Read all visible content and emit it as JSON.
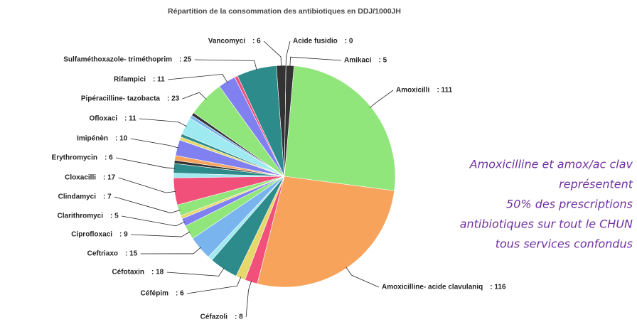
{
  "chart_data": {
    "type": "pie",
    "title": "Répartition de la consommation des antibiotiques en DDJ/1000JH",
    "categories": [
      "Amoxicilli",
      "Amoxicilline- acide clavulaniq",
      "Céfazoli",
      "Céfépim",
      "Céfotaxin",
      null,
      "Ceftriaxo",
      "Ciprofloxaci",
      "Clarithromyci",
      null,
      "Clindamyci",
      "Cloxacilli",
      null,
      "Erythromycin",
      null,
      null,
      "Imipénèn",
      null,
      null,
      "Ofloxaci",
      null,
      null,
      "Pipéracilline- tazobacta",
      "Rifampici",
      null,
      "Sulfaméthoxazole- triméthoprim",
      "Vancomyci",
      "Acide fusidio",
      "Amikaci"
    ],
    "values": [
      111,
      116,
      8,
      6,
      18,
      3,
      15,
      9,
      5,
      2,
      7,
      17,
      3,
      6,
      2,
      3,
      10,
      2,
      2,
      11,
      2,
      2,
      23,
      11,
      2,
      25,
      6,
      0,
      5
    ],
    "value_labels": [
      ": 111",
      ": 116",
      ": 8",
      ": 6",
      ": 18",
      null,
      ": 15",
      ": 9",
      ": 5",
      null,
      ": 7",
      ": 17",
      null,
      ": 6",
      null,
      null,
      ": 10",
      null,
      null,
      ": 11",
      null,
      null,
      ": 23",
      ": 11",
      null,
      ": 25",
      ": 6",
      ": 0",
      ": 5"
    ],
    "colors": [
      "#90e67a",
      "#f7a35c",
      "#f0507a",
      "#e6d86a",
      "#2e8b8b",
      "#9eeaf0",
      "#7ab4ef",
      "#90e67a",
      "#8080f0",
      "#e6d86a",
      "#90e67a",
      "#f0507a",
      "#9eeaf0",
      "#2e8b8b",
      "#333333",
      "#f7a35c",
      "#8080f0",
      "#e6d86a",
      "#2e8b8b",
      "#9eeaf0",
      "#7ab4ef",
      "#333333",
      "#90e67a",
      "#8080f0",
      "#f0507a",
      "#2e8b8b",
      "#333333",
      "#7ab4ef",
      "#333333"
    ],
    "annotation": [
      "Amoxicilline et amox/ac clav",
      "représentent",
      "50% des prescriptions",
      "antibiotiques sur tout le CHUN",
      "tous services confondus"
    ]
  }
}
